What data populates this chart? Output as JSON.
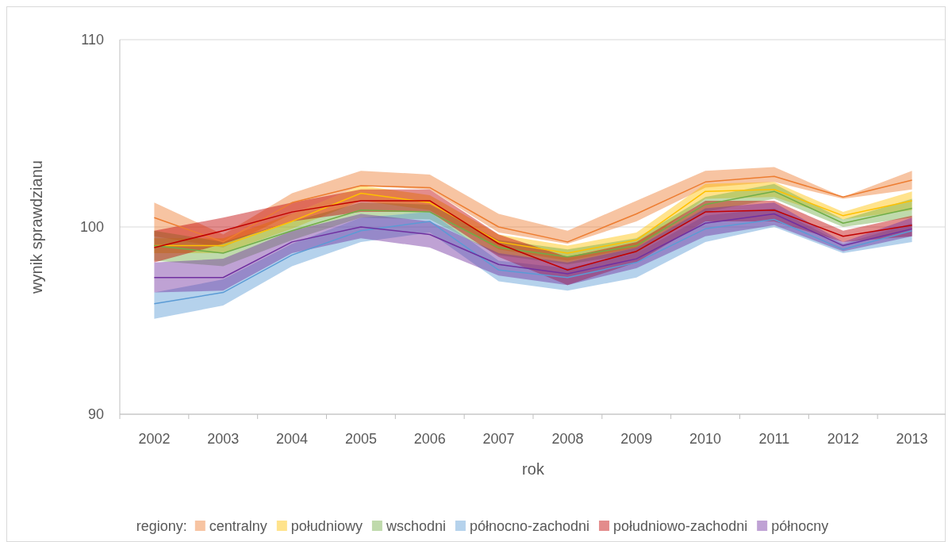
{
  "chart_data": {
    "type": "line",
    "xlabel": "rok",
    "ylabel": "wynik sprawdzianu",
    "legend_title": "regiony:",
    "categories": [
      "2002",
      "2003",
      "2004",
      "2005",
      "2006",
      "2007",
      "2008",
      "2009",
      "2010",
      "2011",
      "2012",
      "2013"
    ],
    "ylim": [
      90,
      110
    ],
    "yticks": [
      90,
      100,
      110
    ],
    "grid": "y",
    "legend": "bottom",
    "marker": "none",
    "line_style": "solid",
    "series": [
      {
        "name": "centralny",
        "color": "#ed7d31",
        "values": [
          100.5,
          99.2,
          101.3,
          102.2,
          102.1,
          100.0,
          99.2,
          100.7,
          102.4,
          102.7,
          101.6,
          102.5
        ],
        "lower": [
          99.5,
          98.9,
          100.7,
          102.2,
          102.0,
          99.7,
          99.1,
          100.3,
          102.1,
          102.4,
          101.5,
          102.0
        ],
        "upper": [
          101.3,
          99.6,
          101.8,
          103.0,
          102.8,
          100.7,
          99.8,
          101.4,
          103.0,
          103.2,
          101.6,
          103.0
        ]
      },
      {
        "name": "południowy",
        "color": "#ffc000",
        "values": [
          99.0,
          99.0,
          100.3,
          101.8,
          101.3,
          99.2,
          98.6,
          99.3,
          101.9,
          102.0,
          100.6,
          101.4
        ],
        "lower": [
          98.6,
          98.6,
          99.9,
          101.4,
          100.9,
          98.8,
          98.2,
          98.9,
          101.5,
          101.6,
          100.4,
          100.9
        ],
        "upper": [
          99.4,
          99.4,
          100.7,
          102.2,
          101.7,
          99.6,
          99.0,
          99.7,
          102.3,
          102.4,
          100.8,
          101.9
        ]
      },
      {
        "name": "wschodni",
        "color": "#70ad47",
        "values": [
          99.0,
          98.6,
          99.8,
          100.9,
          100.8,
          98.9,
          98.4,
          99.0,
          101.2,
          101.9,
          100.2,
          101.0
        ],
        "lower": [
          98.2,
          97.9,
          99.3,
          100.5,
          100.4,
          98.5,
          98.0,
          98.6,
          100.8,
          101.5,
          100.0,
          100.5
        ],
        "upper": [
          99.8,
          99.2,
          100.3,
          101.3,
          101.2,
          99.3,
          98.8,
          99.4,
          101.6,
          102.3,
          100.4,
          101.5
        ]
      },
      {
        "name": "północno-zachodni",
        "color": "#5b9bd5",
        "values": [
          95.9,
          96.5,
          98.5,
          99.8,
          100.3,
          97.7,
          97.3,
          98.1,
          99.9,
          100.4,
          98.8,
          99.8
        ],
        "lower": [
          95.1,
          95.8,
          97.9,
          99.2,
          99.7,
          97.1,
          96.6,
          97.3,
          99.2,
          100.0,
          98.6,
          99.2
        ],
        "upper": [
          96.5,
          97.2,
          99.1,
          100.5,
          100.8,
          98.2,
          97.8,
          98.6,
          100.6,
          101.0,
          99.1,
          100.2
        ]
      },
      {
        "name": "południowo-zachodni",
        "color": "#c00000",
        "values": [
          98.9,
          99.8,
          100.8,
          101.4,
          101.4,
          99.1,
          97.7,
          98.7,
          100.8,
          100.9,
          99.5,
          100.1
        ],
        "lower": [
          98.1,
          99.1,
          100.3,
          100.8,
          100.8,
          98.4,
          96.9,
          98.1,
          100.3,
          100.3,
          99.2,
          99.5
        ],
        "upper": [
          99.8,
          100.5,
          101.3,
          102.0,
          102.0,
          99.6,
          98.4,
          99.2,
          101.4,
          101.4,
          99.8,
          100.6
        ]
      },
      {
        "name": "północny",
        "color": "#7030a0",
        "values": [
          97.3,
          97.3,
          99.2,
          100.0,
          99.6,
          98.0,
          97.5,
          98.3,
          100.2,
          100.7,
          99.0,
          99.9
        ],
        "lower": [
          96.5,
          96.6,
          98.6,
          99.4,
          98.9,
          97.4,
          96.9,
          97.8,
          99.5,
          100.1,
          98.7,
          99.5
        ],
        "upper": [
          98.1,
          98.3,
          99.8,
          100.7,
          100.3,
          98.6,
          98.1,
          98.9,
          101.0,
          101.3,
          99.2,
          100.5
        ]
      }
    ]
  }
}
